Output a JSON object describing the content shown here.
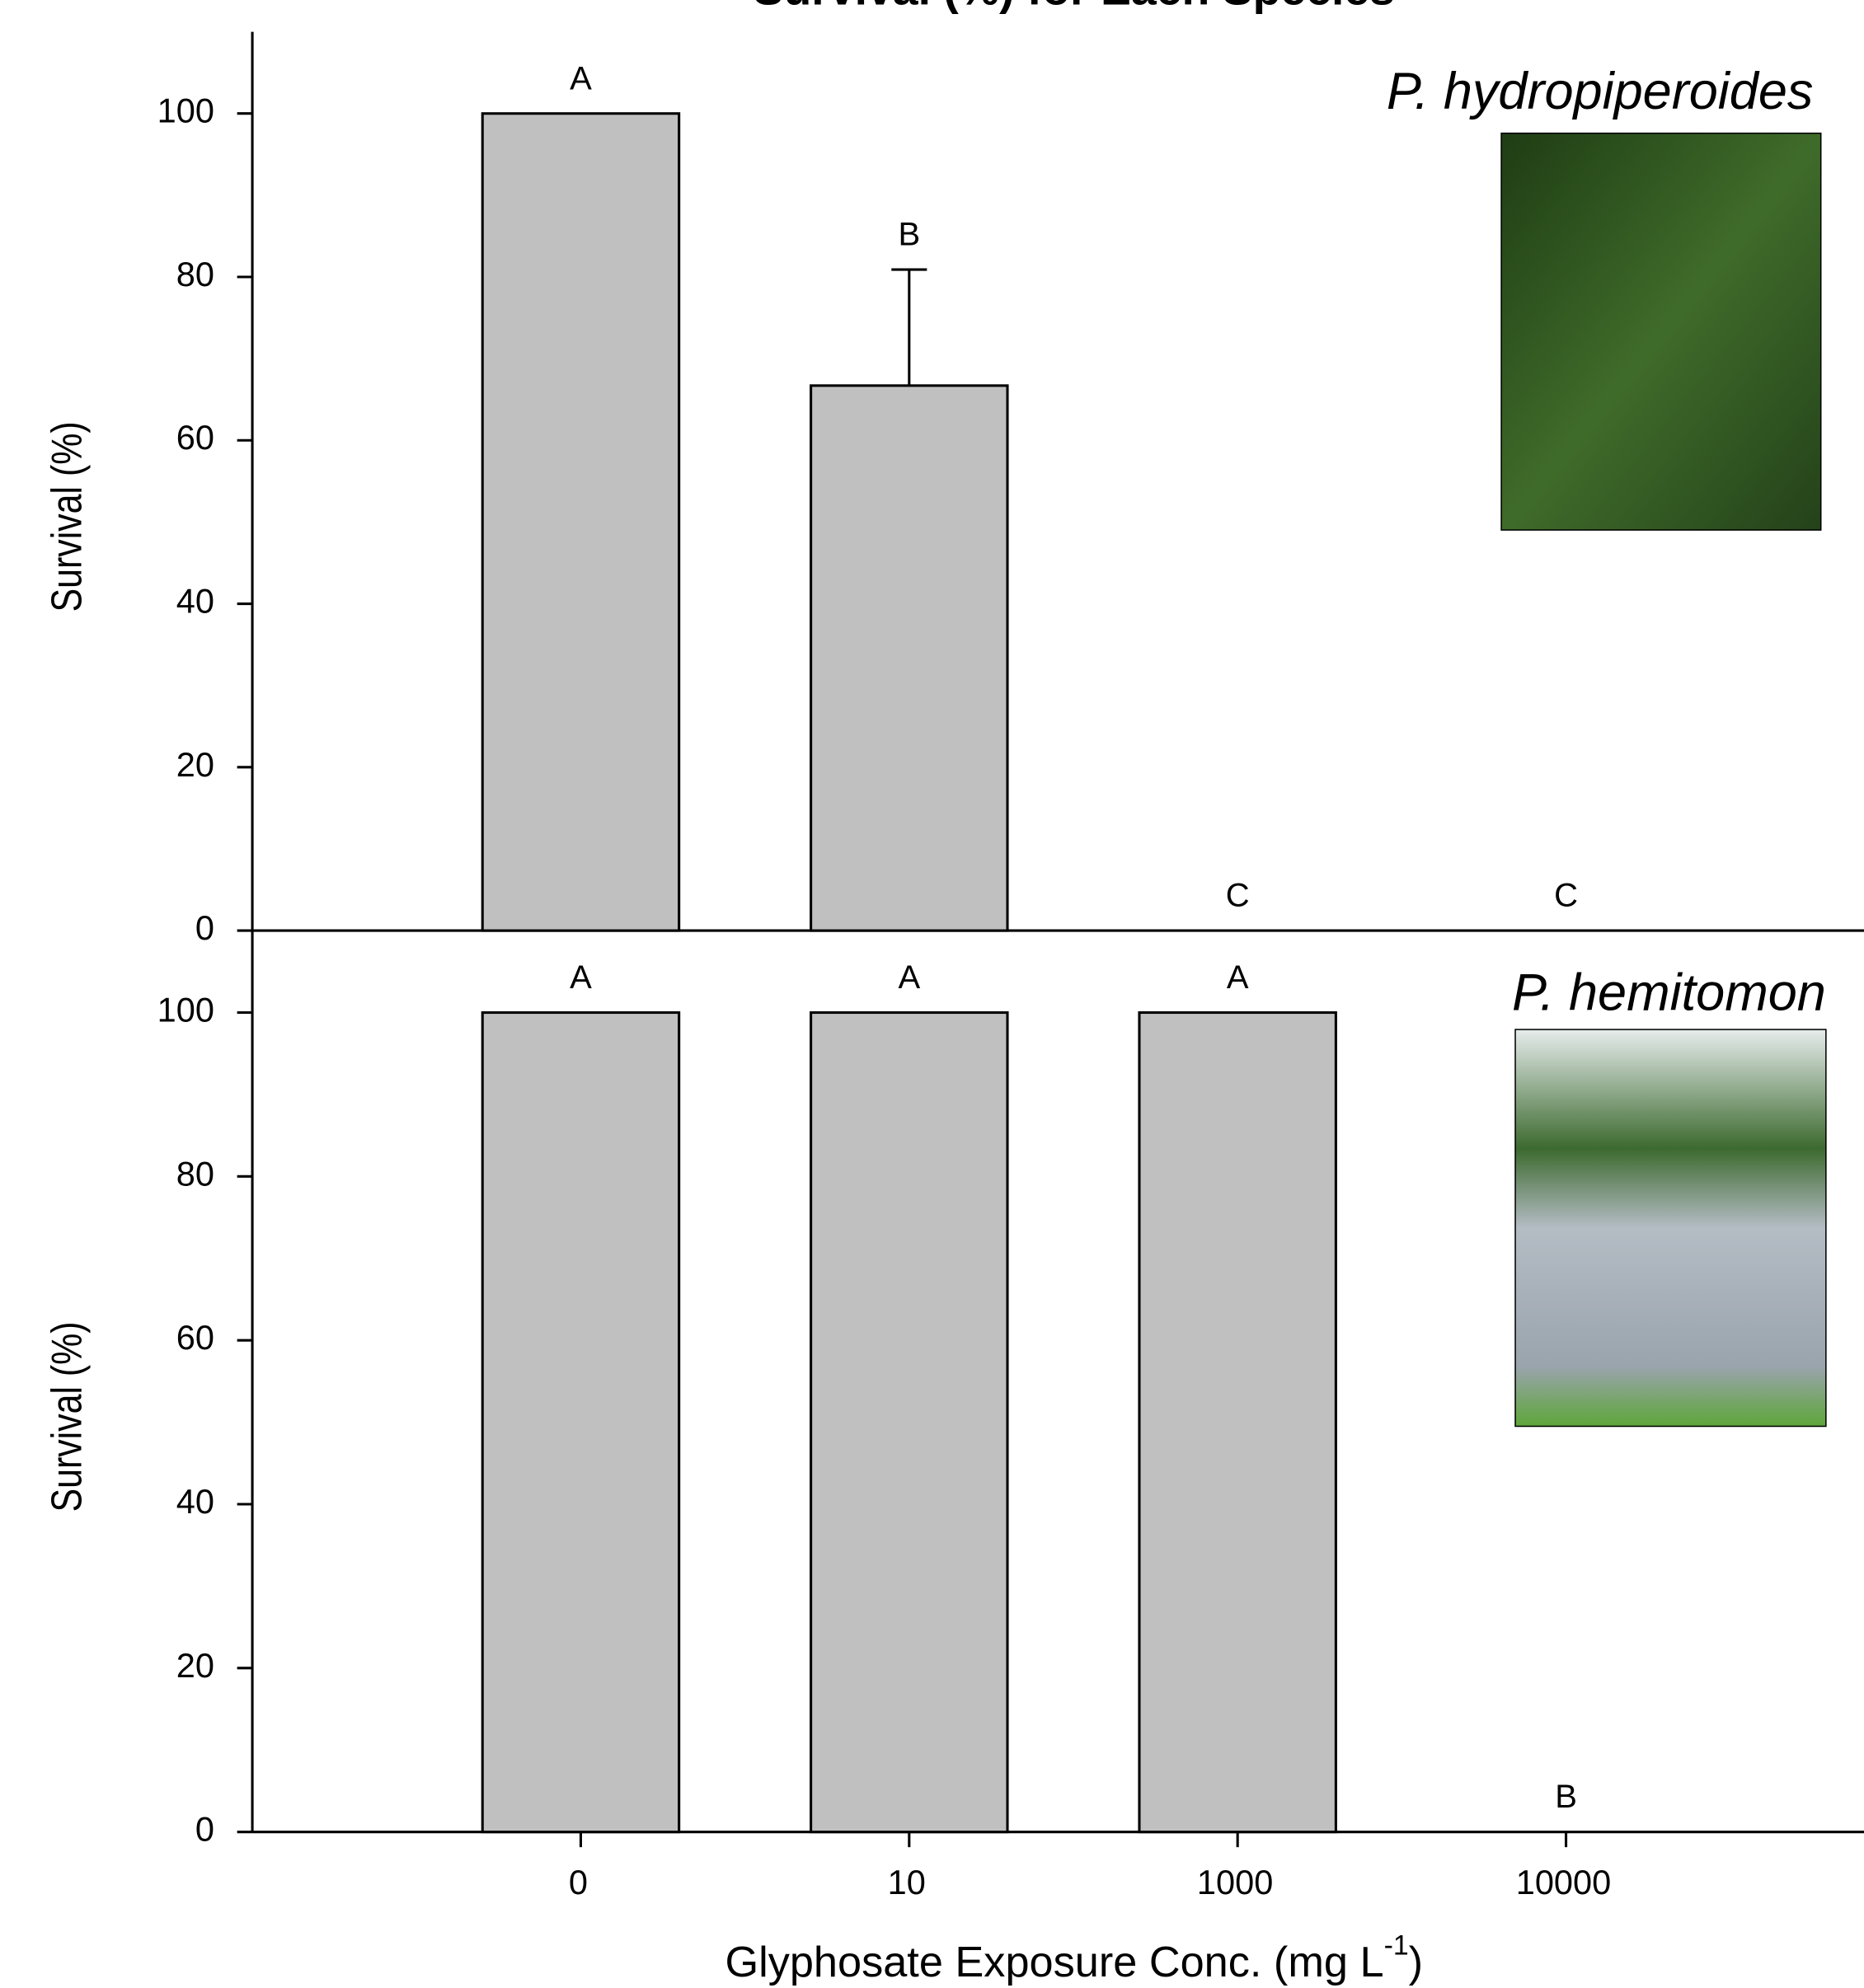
{
  "title": "Survival (%) for Each Species",
  "chart_data": [
    {
      "type": "bar",
      "title": "P. hydropiperoides",
      "ylabel": "Survival (%)",
      "categories": [
        null,
        null,
        null,
        null
      ],
      "values": [
        100,
        66.7,
        0,
        0
      ],
      "errors": [
        null,
        14.2,
        null,
        null
      ],
      "letters": [
        "A",
        "B",
        "C",
        "C"
      ],
      "color": "#c0c0c0",
      "ylim": [
        0,
        110
      ],
      "yticks": [
        0,
        20,
        40,
        60,
        80,
        100
      ]
    },
    {
      "type": "bar",
      "title": "P. hemitomon",
      "ylabel": "Survival (%)",
      "xlabel": "Glyphosate Exposure Conc. (mg L",
      "xlabel_superscript": "-1",
      "xlabel_end": ")",
      "categories": [
        "0",
        "10",
        "1000",
        "10000"
      ],
      "values": [
        100,
        100,
        100,
        0
      ],
      "errors": [
        null,
        null,
        null,
        null
      ],
      "letters": [
        "A",
        "A",
        "A",
        "B"
      ],
      "color": "#c0c0c0",
      "ylim": [
        0,
        110
      ],
      "yticks": [
        0,
        20,
        40,
        60,
        80,
        100
      ]
    }
  ]
}
